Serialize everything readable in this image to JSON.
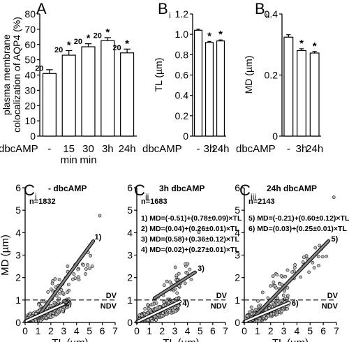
{
  "chart_data": [
    {
      "panel": "A",
      "type": "bar",
      "ylabel": "plasma membrane colocalization of AQP4 (%)",
      "ylim": [
        0,
        80
      ],
      "yticks": [
        0,
        10,
        20,
        30,
        40,
        50,
        60,
        70,
        80
      ],
      "xlabel": "dbcAMP",
      "categories": [
        "-",
        "15 min",
        "30 min",
        "3h",
        "24h"
      ],
      "values": [
        41,
        53,
        58.5,
        62.5,
        54.5
      ],
      "errors": [
        2.5,
        3,
        2,
        2,
        2.5
      ],
      "n": [
        "20",
        "20",
        "20",
        "20",
        "20"
      ],
      "significance": [
        "",
        "*",
        "*",
        "*",
        "*"
      ]
    },
    {
      "panel": "Bi",
      "type": "bar",
      "ylabel": "TL (µm)",
      "ylim": [
        0,
        1.2
      ],
      "yticks": [
        "0",
        "0.2",
        "0.4",
        "0.6",
        "0.8",
        "1.0",
        "1.2"
      ],
      "xlabel": "dbcAMP",
      "categories": [
        "-",
        "3h",
        "24h"
      ],
      "values": [
        1.04,
        0.92,
        0.935
      ],
      "errors": [
        0.01,
        0.01,
        0.01
      ],
      "significance": [
        "",
        "*",
        "*"
      ]
    },
    {
      "panel": "Bii",
      "type": "bar",
      "ylabel": "MD (µm)",
      "ylim": [
        0,
        0.4
      ],
      "yticks": [
        "0",
        "0.2",
        "0.4"
      ],
      "xlabel": "dbcAMP",
      "categories": [
        "-",
        "3h",
        "24h"
      ],
      "values": [
        0.324,
        0.28,
        0.272
      ],
      "errors": [
        0.008,
        0.006,
        0.005
      ],
      "significance": [
        "",
        "*",
        "*"
      ]
    },
    {
      "panel": "Ci",
      "type": "scatter",
      "title": "- dbcAMP",
      "n": "n=1832",
      "xlabel": "TL (µm)",
      "ylabel": "MD (µm)",
      "xlim": [
        0,
        7
      ],
      "ylim": [
        0,
        6
      ],
      "xticks": [
        0,
        1,
        2,
        3,
        4,
        5,
        6,
        7
      ],
      "yticks": [
        0,
        1,
        2,
        3,
        4,
        5,
        6
      ],
      "threshold": 1,
      "dv": "DV",
      "ndv": "NDV",
      "lines": [
        {
          "label": "1)",
          "intercept": -0.51,
          "slope": 0.78,
          "x": [
            1.2,
            5.3
          ],
          "label_x": 5.4,
          "label_y": 3.7
        },
        {
          "label": "2)",
          "intercept": 0.04,
          "slope": 0.26,
          "x": [
            0,
            3.0
          ],
          "label_x": 3.1,
          "label_y": 0.75
        }
      ],
      "points_seed": 7,
      "points_max_x": 5.8
    },
    {
      "panel": "Cii",
      "type": "scatter",
      "title": "3h dbcAMP",
      "n": "n=1683",
      "xlabel": "TL (µm)",
      "ylabel": "",
      "xlim": [
        0,
        7
      ],
      "ylim": [
        0,
        6
      ],
      "xticks": [
        0,
        1,
        2,
        3,
        4,
        5,
        6,
        7
      ],
      "yticks": [
        0,
        1,
        2,
        3,
        4,
        5,
        6
      ],
      "threshold": 1,
      "dv": "DV",
      "ndv": "NDV",
      "equations": [
        "1) MD=(-0.51)+(0.78±0.09)×TL",
        "2) MD=(0.04)+(0.26±0.01)×TL",
        "3) MD=(0.58)+(0.36±0.12)×TL",
        "4) MD=(0.02)+(0.27±0.01)×TL"
      ],
      "lines": [
        {
          "label": "3)",
          "intercept": 0.58,
          "slope": 0.36,
          "x": [
            1.4,
            4.6
          ],
          "label_x": 4.8,
          "label_y": 2.3
        },
        {
          "label": "4)",
          "intercept": 0.02,
          "slope": 0.27,
          "x": [
            0,
            3.4
          ],
          "label_x": 3.6,
          "label_y": 0.75
        }
      ],
      "points_seed": 21,
      "points_max_x": 4.9
    },
    {
      "panel": "Ciii",
      "type": "scatter",
      "title": "24h dbcAMP",
      "n": "n=2143",
      "xlabel": "TL (µm)",
      "ylabel": "",
      "xlim": [
        0,
        7
      ],
      "ylim": [
        0,
        6
      ],
      "xticks": [
        0,
        1,
        2,
        3,
        4,
        5,
        6,
        7
      ],
      "yticks": [
        0,
        1,
        2,
        3,
        4,
        5,
        6
      ],
      "threshold": 1,
      "dv": "DV",
      "ndv": "NDV",
      "equations": [
        "5) MD=(-0.21)+(0.60±0.12)×TL",
        "6) MD=(0.03)+(0.25±0.01)×TL"
      ],
      "lines": [
        {
          "label": "5)",
          "intercept": -0.21,
          "slope": 0.6,
          "x": [
            0.8,
            6.4
          ],
          "label_x": 6.6,
          "label_y": 3.6
        },
        {
          "label": "6)",
          "intercept": 0.03,
          "slope": 0.25,
          "x": [
            0,
            3.4
          ],
          "label_x": 3.6,
          "label_y": 0.75
        }
      ],
      "points_seed": 42,
      "points_max_x": 6.8
    }
  ],
  "panel_labels": {
    "A": "A",
    "Bi_main": "B",
    "Bi_sub": "i",
    "Bii_main": "B",
    "Bii_sub": "ii",
    "Ci_main": "C",
    "Ci_sub": "i",
    "Cii_main": "C",
    "Cii_sub": "ii",
    "Ciii_main": "C",
    "Ciii_sub": "iii"
  }
}
